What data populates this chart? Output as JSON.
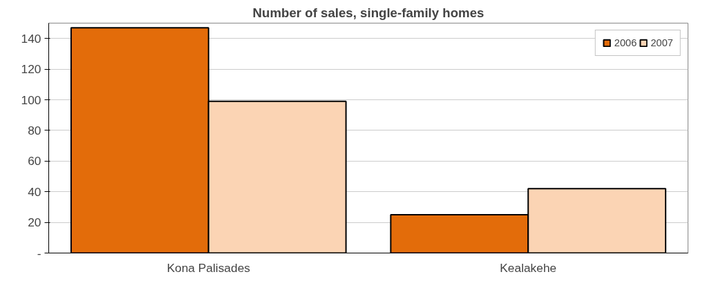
{
  "chart_data": {
    "type": "bar",
    "title": "Number of sales, single-family homes",
    "categories": [
      "Kona Palisades",
      "Kealakehe"
    ],
    "series": [
      {
        "name": "2006",
        "color": "#e36c0a",
        "values": [
          147,
          25
        ]
      },
      {
        "name": "2007",
        "color": "#fbd4b4",
        "values": [
          99,
          42
        ]
      }
    ],
    "ylim": [
      0,
      150
    ],
    "yticks": [
      {
        "value": 0,
        "label": "-"
      },
      20,
      40,
      60,
      80,
      100,
      120,
      140
    ],
    "grid": "y",
    "legend": "top right"
  }
}
